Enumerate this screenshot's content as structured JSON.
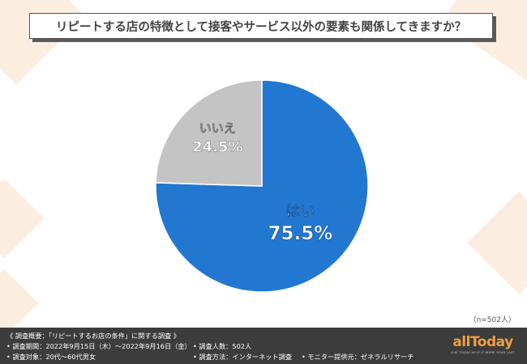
{
  "title": "リピートする店の特徴として接客やサービス以外の要素も関係してきますか？",
  "chart_data": {
    "type": "pie",
    "title": "リピートする店の特徴として接客やサービス以外の要素も関係してきますか？",
    "slices": [
      {
        "label": "はい",
        "value": 75.5,
        "display": "75.5%",
        "color": "#2277d0"
      },
      {
        "label": "いいえ",
        "value": 24.5,
        "display": "24.5%",
        "color": "#c4c4c4"
      }
    ],
    "start": "top, clockwise"
  },
  "sample_note": "（n=502人）",
  "footer": {
    "survey_title": "《 調査概要：「リピートするお店の条件」に関する調査 》",
    "period": "• 調査期間：2022年9月15日（木）～2022年9月16日（金）",
    "people": "• 調査人数：502人",
    "target": "• 調査対象：20代～60代男女",
    "method": "• 調査方法：インターネット調査",
    "provider": "• モニター提供元：ゼネラルリサーチ"
  },
  "logo": {
    "text": "allToday",
    "tagline": "LIVE TODAY AS IF IT WERE YOUR LAST",
    "color": "#f0a040"
  }
}
